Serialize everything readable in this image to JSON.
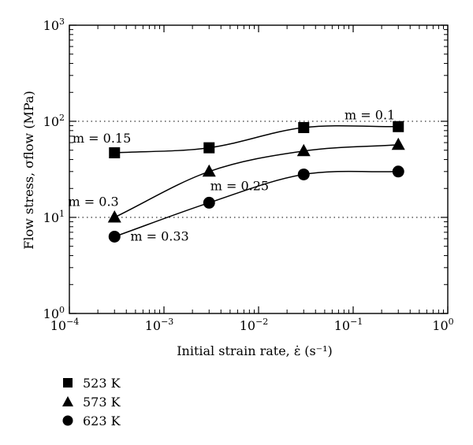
{
  "chart_data": {
    "type": "line",
    "xscale": "log",
    "yscale": "log",
    "xlim": [
      0.0001,
      1
    ],
    "ylim": [
      1,
      1000
    ],
    "xlabel": "Initial strain rate, ε̇ (s⁻¹)",
    "ylabel": "Flow stress, σflow (MPa)",
    "x_tick_labels": [
      {
        "base": "10",
        "exp": "−4"
      },
      {
        "base": "10",
        "exp": "−3"
      },
      {
        "base": "10",
        "exp": "−2"
      },
      {
        "base": "10",
        "exp": "−1"
      },
      {
        "base": "10",
        "exp": "0"
      }
    ],
    "y_tick_labels": [
      {
        "base": "10",
        "exp": "0"
      },
      {
        "base": "10",
        "exp": "1"
      },
      {
        "base": "10",
        "exp": "2"
      },
      {
        "base": "10",
        "exp": "3"
      }
    ],
    "reference_lines_y": [
      10,
      100
    ],
    "x": [
      0.0003,
      0.003,
      0.03,
      0.3
    ],
    "series": [
      {
        "name": "523 K",
        "marker": "square",
        "values": [
          47,
          53,
          86,
          88
        ]
      },
      {
        "name": "573 K",
        "marker": "triangle",
        "values": [
          10,
          30,
          49,
          57
        ]
      },
      {
        "name": "623 K",
        "marker": "circle",
        "values": [
          6.3,
          14.2,
          28,
          30
        ]
      }
    ],
    "annotations": [
      {
        "text": "m = 0.1",
        "x": 0.15,
        "y": 115
      },
      {
        "text": "m = 0.15",
        "x": 0.00022,
        "y": 66
      },
      {
        "text": "m = 0.25",
        "x": 0.0063,
        "y": 21
      },
      {
        "text": "m = 0.3",
        "x": 0.00018,
        "y": 14.5
      },
      {
        "text": "m = 0.33",
        "x": 0.0009,
        "y": 6.3
      }
    ],
    "legend_position": "bottom-left",
    "grid": false
  }
}
